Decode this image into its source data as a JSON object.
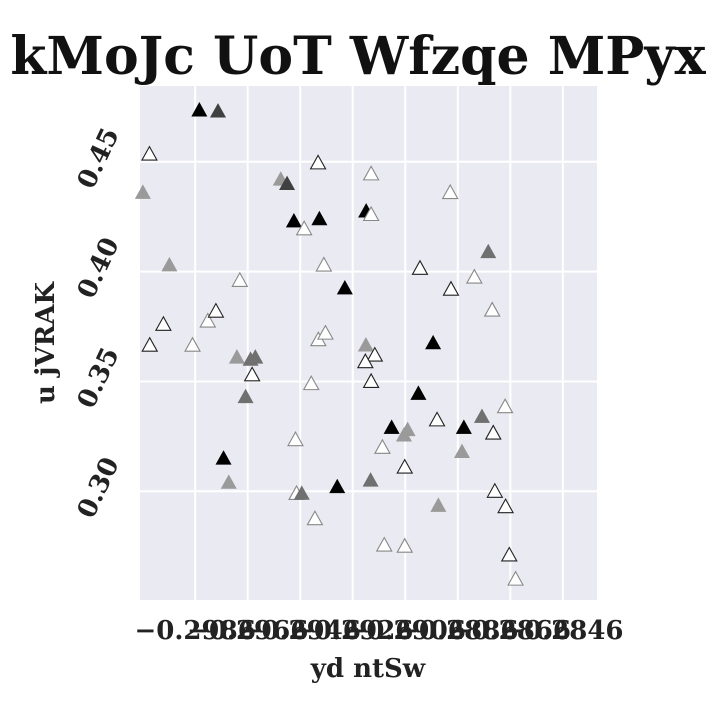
{
  "chart_data": {
    "type": "scatter",
    "title": "kMoJc UoT Wfzqe MPyx",
    "xlabel": "yd ntSw",
    "ylabel": "u jVRAK",
    "xlim": [
      -0.3007,
      -0.2833
    ],
    "ylim": [
      0.2505,
      0.4845
    ],
    "x_ticks": [
      -0.2986,
      -0.2966,
      -0.2946,
      -0.2926,
      -0.2906,
      -0.2886,
      -0.2866,
      -0.2846
    ],
    "x_tick_labels": [
      "−0.2986",
      "−0.2966",
      "−0.2946",
      "−0.2926",
      "−0.2906",
      "−0.2886",
      "−0.2866",
      "−0.2846"
    ],
    "y_ticks": [
      0.3,
      0.35,
      0.4,
      0.45
    ],
    "y_tick_labels": [
      "0.30",
      "0.35",
      "0.40",
      "0.45"
    ],
    "grid": true,
    "marker": "triangle",
    "colors": {
      "plot_background": "#eaeaf2",
      "grid": "#ffffff",
      "black": "#000000",
      "dark_gray": "#404040",
      "mid_gray": "#707070",
      "light_gray": "#9a9a9a",
      "outline": "#222222",
      "light_outline": "#888888"
    },
    "points": [
      {
        "x": -0.29844,
        "y": 0.4735,
        "style": "black"
      },
      {
        "x": -0.29773,
        "y": 0.473,
        "style": "dark_gray"
      },
      {
        "x": -0.30034,
        "y": 0.4535,
        "style": "outline"
      },
      {
        "x": -0.30059,
        "y": 0.436,
        "style": "light_gray"
      },
      {
        "x": -0.29958,
        "y": 0.403,
        "style": "light_gray"
      },
      {
        "x": -0.29981,
        "y": 0.376,
        "style": "outline"
      },
      {
        "x": -0.30033,
        "y": 0.3665,
        "style": "outline"
      },
      {
        "x": -0.2987,
        "y": 0.3665,
        "style": "light_outline"
      },
      {
        "x": -0.29812,
        "y": 0.3775,
        "style": "light_outline"
      },
      {
        "x": -0.29781,
        "y": 0.382,
        "style": "outline"
      },
      {
        "x": -0.2969,
        "y": 0.396,
        "style": "light_outline"
      },
      {
        "x": -0.29752,
        "y": 0.315,
        "style": "black"
      },
      {
        "x": -0.29732,
        "y": 0.304,
        "style": "light_gray"
      },
      {
        "x": -0.29701,
        "y": 0.361,
        "style": "light_gray"
      },
      {
        "x": -0.29649,
        "y": 0.36,
        "style": "mid_gray"
      },
      {
        "x": -0.29631,
        "y": 0.361,
        "style": "mid_gray"
      },
      {
        "x": -0.29643,
        "y": 0.353,
        "style": "outline"
      },
      {
        "x": -0.29668,
        "y": 0.343,
        "style": "mid_gray"
      },
      {
        "x": -0.29534,
        "y": 0.442,
        "style": "light_gray"
      },
      {
        "x": -0.2951,
        "y": 0.44,
        "style": "dark_gray"
      },
      {
        "x": -0.29484,
        "y": 0.423,
        "style": "black"
      },
      {
        "x": -0.29445,
        "y": 0.4195,
        "style": "light_outline"
      },
      {
        "x": -0.29387,
        "y": 0.424,
        "style": "black"
      },
      {
        "x": -0.29392,
        "y": 0.4495,
        "style": "outline"
      },
      {
        "x": -0.2937,
        "y": 0.403,
        "style": "light_outline"
      },
      {
        "x": -0.2929,
        "y": 0.3925,
        "style": "black"
      },
      {
        "x": -0.29391,
        "y": 0.369,
        "style": "light_outline"
      },
      {
        "x": -0.29364,
        "y": 0.372,
        "style": "light_outline"
      },
      {
        "x": -0.29418,
        "y": 0.349,
        "style": "light_outline"
      },
      {
        "x": -0.29478,
        "y": 0.3235,
        "style": "light_outline"
      },
      {
        "x": -0.29474,
        "y": 0.299,
        "style": "light_outline"
      },
      {
        "x": -0.29454,
        "y": 0.299,
        "style": "mid_gray"
      },
      {
        "x": -0.29404,
        "y": 0.2875,
        "style": "light_outline"
      },
      {
        "x": -0.29319,
        "y": 0.302,
        "style": "black"
      },
      {
        "x": -0.29209,
        "y": 0.4275,
        "style": "black"
      },
      {
        "x": -0.2919,
        "y": 0.426,
        "style": "light_outline"
      },
      {
        "x": -0.2919,
        "y": 0.4445,
        "style": "light_outline"
      },
      {
        "x": -0.2921,
        "y": 0.3665,
        "style": "light_gray"
      },
      {
        "x": -0.29176,
        "y": 0.362,
        "style": "outline"
      },
      {
        "x": -0.29212,
        "y": 0.359,
        "style": "outline"
      },
      {
        "x": -0.2919,
        "y": 0.35,
        "style": "outline"
      },
      {
        "x": -0.29192,
        "y": 0.305,
        "style": "mid_gray"
      },
      {
        "x": -0.29147,
        "y": 0.32,
        "style": "light_outline"
      },
      {
        "x": -0.29112,
        "y": 0.329,
        "style": "black"
      },
      {
        "x": -0.29065,
        "y": 0.3255,
        "style": "light_gray"
      },
      {
        "x": -0.29051,
        "y": 0.328,
        "style": "light_gray"
      },
      {
        "x": -0.29062,
        "y": 0.311,
        "style": "outline"
      },
      {
        "x": -0.2914,
        "y": 0.2755,
        "style": "light_outline"
      },
      {
        "x": -0.29062,
        "y": 0.275,
        "style": "light_outline"
      },
      {
        "x": -0.29004,
        "y": 0.4015,
        "style": "outline"
      },
      {
        "x": -0.2901,
        "y": 0.3445,
        "style": "black"
      },
      {
        "x": -0.28954,
        "y": 0.3675,
        "style": "black"
      },
      {
        "x": -0.28939,
        "y": 0.3325,
        "style": "outline"
      },
      {
        "x": -0.28934,
        "y": 0.2935,
        "style": "light_gray"
      },
      {
        "x": -0.28889,
        "y": 0.436,
        "style": "light_outline"
      },
      {
        "x": -0.28886,
        "y": 0.392,
        "style": "outline"
      },
      {
        "x": -0.28844,
        "y": 0.318,
        "style": "light_gray"
      },
      {
        "x": -0.28837,
        "y": 0.329,
        "style": "black"
      },
      {
        "x": -0.28797,
        "y": 0.3975,
        "style": "light_outline"
      },
      {
        "x": -0.28768,
        "y": 0.334,
        "style": "mid_gray"
      },
      {
        "x": -0.28744,
        "y": 0.409,
        "style": "mid_gray"
      },
      {
        "x": -0.28729,
        "y": 0.3825,
        "style": "light_outline"
      },
      {
        "x": -0.28725,
        "y": 0.3265,
        "style": "outline"
      },
      {
        "x": -0.2868,
        "y": 0.3385,
        "style": "light_outline"
      },
      {
        "x": -0.28719,
        "y": 0.3,
        "style": "outline"
      },
      {
        "x": -0.28678,
        "y": 0.293,
        "style": "outline"
      },
      {
        "x": -0.28664,
        "y": 0.271,
        "style": "outline"
      },
      {
        "x": -0.2864,
        "y": 0.26,
        "style": "light_outline"
      }
    ]
  }
}
